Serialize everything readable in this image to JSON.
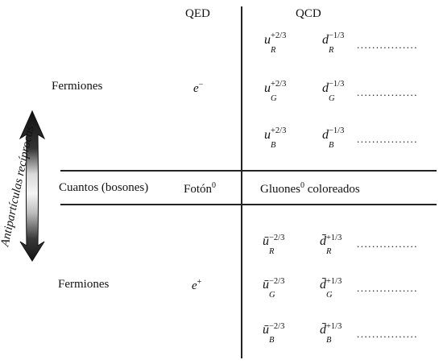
{
  "headers": {
    "qed": "QED",
    "qcd": "QCD"
  },
  "rows": {
    "fermions_top": "Fermiones",
    "quanta": "Cuantos (bosones)",
    "fermions_bottom": "Fermiones"
  },
  "qed": {
    "electron_base": "e",
    "electron_sign": "−",
    "photon_base": "Fotón",
    "photon_sup": "0",
    "positron_base": "e",
    "positron_sign": "+"
  },
  "qcd": {
    "gluon_base": "Gluones",
    "gluon_sup": "0",
    "gluon_tail": " coloreados",
    "quarks": [
      {
        "u": "u",
        "u_sub": "R",
        "u_sup": "+2/3",
        "d": "d",
        "d_sub": "R",
        "d_sup": "−1/3"
      },
      {
        "u": "u",
        "u_sub": "G",
        "u_sup": "+2/3",
        "d": "d",
        "d_sub": "G",
        "d_sup": "−1/3"
      },
      {
        "u": "u",
        "u_sub": "B",
        "u_sup": "+2/3",
        "d": "d",
        "d_sub": "B",
        "d_sup": "−1/3"
      }
    ],
    "antiquarks": [
      {
        "u": "ū",
        "u_sub": "R",
        "u_sup": "−2/3",
        "d": "d̄",
        "d_sub": "R",
        "d_sup": "+1/3"
      },
      {
        "u": "ū",
        "u_sub": "G",
        "u_sup": "−2/3",
        "d": "d̄",
        "d_sub": "G",
        "d_sup": "+1/3"
      },
      {
        "u": "ū",
        "u_sub": "B",
        "u_sup": "−2/3",
        "d": "d̄",
        "d_sub": "B",
        "d_sup": "+1/3"
      }
    ],
    "ellipsis": "................"
  },
  "side_label": "Antipartículas recíprocas"
}
